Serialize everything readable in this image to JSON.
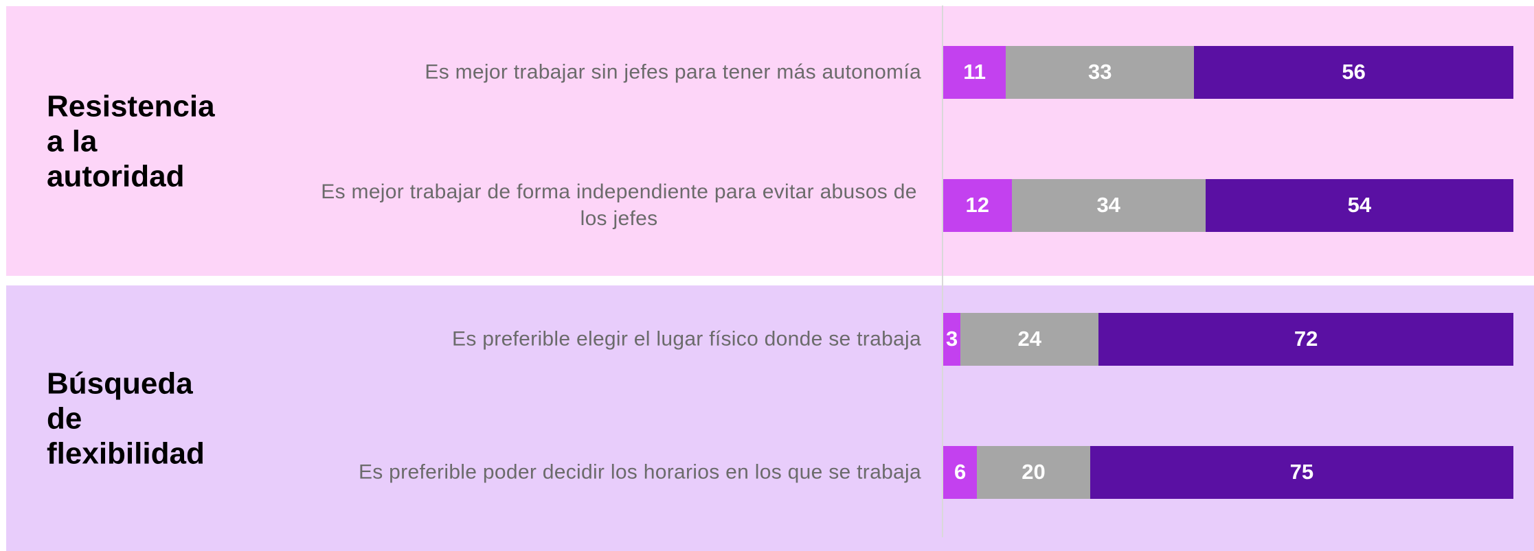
{
  "chart_data": [
    {
      "type": "bar",
      "orientation": "horizontal",
      "stacked": true,
      "background": "#fdd5f8",
      "title": "Resistencia a la autoridad",
      "categories": [
        "Es mejor trabajar sin jefes para tener más autonomía",
        "Es mejor trabajar de forma independiente para evitar abusos de los jefes"
      ],
      "series": [
        {
          "color": "#c341ef",
          "values": [
            11,
            12
          ]
        },
        {
          "color": "#a6a6a6",
          "values": [
            33,
            34
          ]
        },
        {
          "color": "#5a10a3",
          "values": [
            56,
            54
          ]
        }
      ]
    },
    {
      "type": "bar",
      "orientation": "horizontal",
      "stacked": true,
      "background": "#e8cdfb",
      "title": "Búsqueda de flexibilidad",
      "categories": [
        "Es preferible elegir el lugar físico donde se trabaja",
        "Es preferible poder decidir los horarios en los que se trabaja"
      ],
      "series": [
        {
          "color": "#c341ef",
          "values": [
            3,
            6
          ]
        },
        {
          "color": "#a6a6a6",
          "values": [
            24,
            20
          ]
        },
        {
          "color": "#5a10a3",
          "values": [
            72,
            75
          ]
        }
      ]
    }
  ]
}
